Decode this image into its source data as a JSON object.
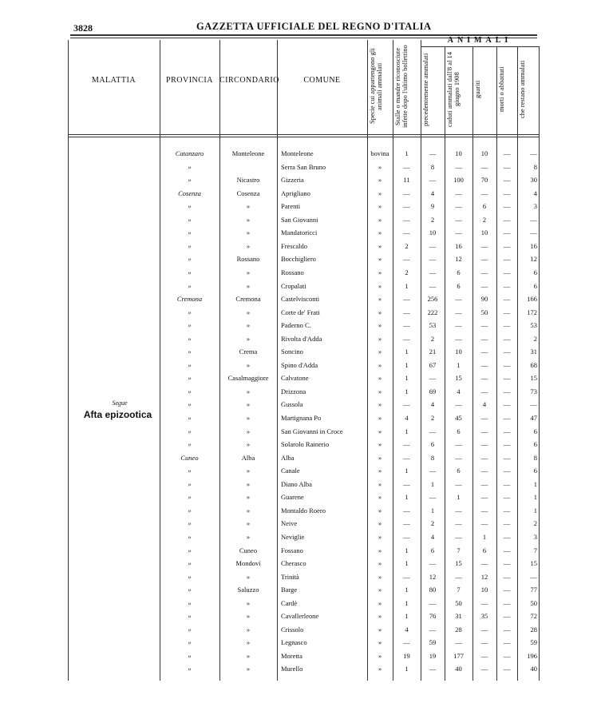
{
  "header": {
    "page_number": "3828",
    "title": "GAZZETTA UFFICIALE DEL REGNO D'ITALIA"
  },
  "table": {
    "column_headers": [
      "MALATTIA",
      "PROVINCIA",
      "CIRCONDARIO",
      "COMUNE",
      "Specie cui appartengono gli animali ammalati",
      "Stalle o mandre riconosciute infette dopo l'ultimo bollettino",
      "precedentemente ammalati",
      "caduti ammalati dall'8 al 14 giugno 1908",
      "guariti",
      "morti o abbattuti",
      "che restano ammalati"
    ],
    "group_header": "ANIMALI",
    "disease_note": "Segue",
    "disease": "Afta epizootica",
    "rows": [
      [
        "Catanzaro",
        "Monteleone",
        "Monteleone",
        "bovina",
        1,
        "—",
        10,
        10,
        "—",
        "—"
      ],
      [
        "»",
        null,
        "Serra San Bruno",
        "»",
        "—",
        8,
        "—",
        "—",
        "—",
        8
      ],
      [
        "»",
        "Nicastro",
        "Gizzeria",
        "»",
        11,
        "—",
        100,
        70,
        "—",
        30
      ],
      [
        "Cosenza",
        "Cosenza",
        "Aprigliano",
        "»",
        "—",
        4,
        "—",
        "—",
        "—",
        4
      ],
      [
        "»",
        "»",
        "Parenti",
        "»",
        "—",
        9,
        "—",
        6,
        "—",
        3
      ],
      [
        "»",
        "»",
        "San Giovanni",
        "»",
        "—",
        2,
        "—",
        2,
        "—",
        "—"
      ],
      [
        "»",
        "»",
        "Mandatoricci",
        "»",
        "—",
        10,
        "—",
        10,
        "—",
        "—"
      ],
      [
        "»",
        "»",
        "Frescaldo",
        "»",
        2,
        "—",
        16,
        "—",
        "—",
        16
      ],
      [
        "»",
        "Rossano",
        "Bocchigliero",
        "»",
        "—",
        "—",
        12,
        "—",
        "—",
        12
      ],
      [
        "»",
        "»",
        "Rossano",
        "»",
        2,
        "—",
        6,
        "—",
        "—",
        6
      ],
      [
        "»",
        "»",
        "Cropalati",
        "»",
        1,
        "—",
        6,
        "—",
        "—",
        6
      ],
      [
        "Cremona",
        "Cremona",
        "Castelvisconti",
        "»",
        "—",
        256,
        "—",
        90,
        "—",
        166
      ],
      [
        "»",
        "»",
        "Corte de' Frati",
        "»",
        "—",
        222,
        "—",
        50,
        "—",
        172
      ],
      [
        "»",
        "»",
        "Paderno C.",
        "»",
        "—",
        53,
        "—",
        "—",
        "—",
        53
      ],
      [
        "»",
        "»",
        "Rivolta d'Adda",
        "»",
        "—",
        2,
        "—",
        "—",
        "—",
        2
      ],
      [
        "»",
        "Crema",
        "Soncino",
        "»",
        1,
        21,
        10,
        "—",
        "—",
        31
      ],
      [
        "»",
        "»",
        "Spino d'Adda",
        "»",
        1,
        67,
        1,
        "—",
        "—",
        68
      ],
      [
        "»",
        "Casalmaggiore",
        "Calvatone",
        "»",
        1,
        "—",
        15,
        "—",
        "—",
        15
      ],
      [
        "»",
        "»",
        "Drizzona",
        "»",
        1,
        69,
        4,
        "—",
        "—",
        73
      ],
      [
        "»",
        "»",
        "Gussola",
        "»",
        "—",
        4,
        "—",
        4,
        "—",
        "—"
      ],
      [
        "»",
        "»",
        "Martignana Po",
        "»",
        4,
        2,
        45,
        "—",
        "—",
        47
      ],
      [
        "»",
        "»",
        "San Giovanni in Croce",
        "»",
        1,
        "—",
        6,
        "—",
        "—",
        6
      ],
      [
        "»",
        "»",
        "Solarolo Rainerio",
        "»",
        "—",
        6,
        "—",
        "—",
        "—",
        6
      ],
      [
        "Cuneo",
        "Alba",
        "Alba",
        "»",
        "—",
        8,
        "—",
        "—",
        "—",
        8
      ],
      [
        "»",
        "»",
        "Canale",
        "»",
        1,
        "—",
        6,
        "—",
        "—",
        6
      ],
      [
        "»",
        "»",
        "Diano Alba",
        "»",
        "—",
        1,
        "—",
        "—",
        "—",
        1
      ],
      [
        "»",
        "»",
        "Guarene",
        "»",
        1,
        "—",
        1,
        "—",
        "—",
        1
      ],
      [
        "»",
        "»",
        "Montaldo Roero",
        "»",
        "—",
        1,
        "—",
        "—",
        "—",
        1
      ],
      [
        "»",
        "»",
        "Neive",
        "»",
        "—",
        2,
        "—",
        "—",
        "—",
        2
      ],
      [
        "»",
        "»",
        "Neviglie",
        "»",
        "—",
        4,
        "—",
        1,
        "—",
        3
      ],
      [
        "»",
        "Cuneo",
        "Fossano",
        "»",
        1,
        6,
        7,
        6,
        "—",
        7
      ],
      [
        "»",
        "Mondovì",
        "Cherasco",
        "»",
        1,
        "—",
        15,
        "—",
        "—",
        15
      ],
      [
        "»",
        "»",
        "Trinità",
        "»",
        "—",
        12,
        "—",
        12,
        "—",
        "—"
      ],
      [
        "»",
        "Saluzzo",
        "Barge",
        "»",
        1,
        80,
        7,
        10,
        "—",
        77
      ],
      [
        "»",
        "»",
        "Cardè",
        "»",
        1,
        "—",
        50,
        "—",
        "—",
        50
      ],
      [
        "»",
        "»",
        "Cavallerleone",
        "»",
        1,
        76,
        31,
        35,
        "—",
        72
      ],
      [
        "»",
        "»",
        "Crissolo",
        "»",
        4,
        "—",
        28,
        "—",
        "—",
        28
      ],
      [
        "»",
        "»",
        "Legnasco",
        "»",
        "—",
        59,
        "—",
        "—",
        "—",
        59
      ],
      [
        "»",
        "»",
        "Moretta",
        "»",
        19,
        19,
        177,
        "—",
        "—",
        196
      ],
      [
        "»",
        "»",
        "Murello",
        "»",
        1,
        "—",
        40,
        "—",
        "—",
        40
      ]
    ]
  }
}
